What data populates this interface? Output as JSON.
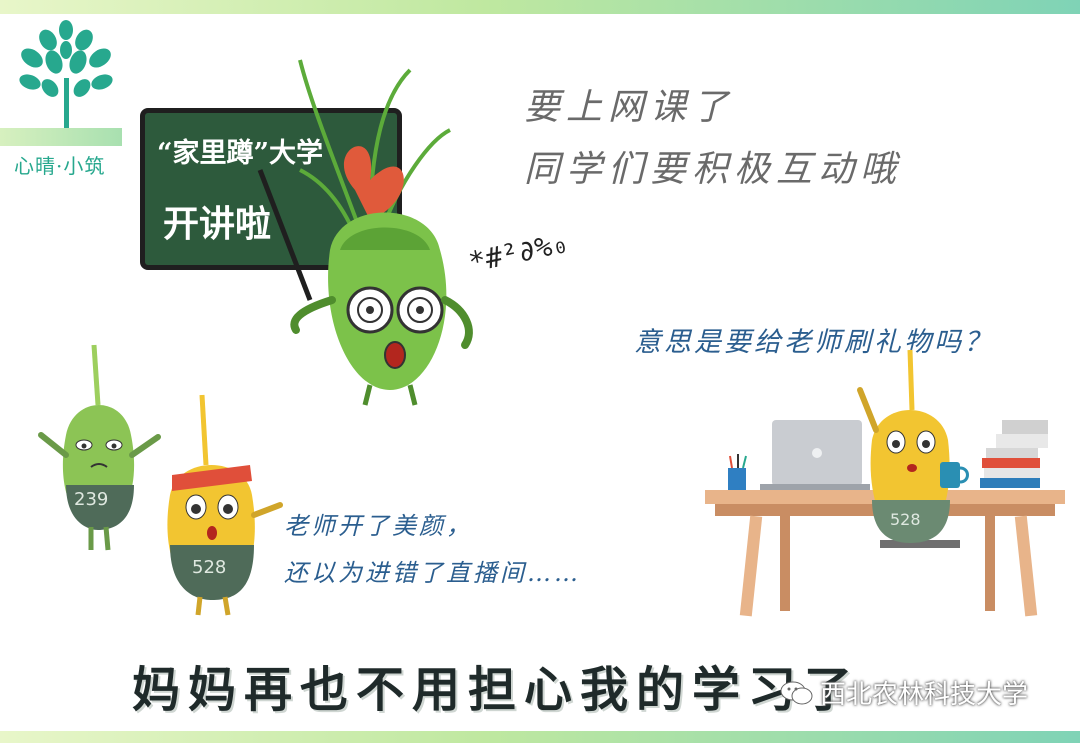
{
  "logo": {
    "text": "心晴·小筑",
    "icon": "tree-icon",
    "color": "#27a88e"
  },
  "blackboard": {
    "line1": "“家里蹲”大学",
    "line2": "开讲啦"
  },
  "top_text": {
    "line1": "要上网课了",
    "line2": "同学们要积极互动哦"
  },
  "math_marks": "*#²∂%₀",
  "question": "意思是要给老师刷礼物吗？",
  "caption": {
    "line1": "老师开了美颜，",
    "line2": "还以为进错了直播间……"
  },
  "characters": {
    "left_number": "239",
    "middle_number": "528",
    "desk_number": "528"
  },
  "headline": "妈妈再也不用担心我的学习了",
  "watermark": {
    "text": "西北农林科技大学",
    "icon": "wechat-icon"
  },
  "colors": {
    "board": "#2d5a3c",
    "blue_text": "#2b5e8f",
    "green_char": "#7cc24a",
    "yellow_char": "#f2c531"
  }
}
